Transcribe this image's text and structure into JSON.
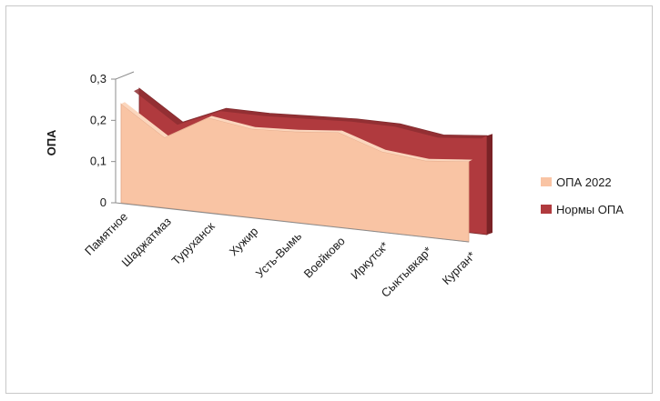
{
  "chart_data": {
    "type": "area",
    "title": "",
    "xlabel": "",
    "ylabel": "ОПА",
    "ylim": [
      0,
      0.3
    ],
    "yticks": [
      "0",
      "0,1",
      "0,2",
      "0,3"
    ],
    "categories": [
      "Памятное",
      "Шаджатмаз",
      "Туруханск",
      "Хужир",
      "Усть-Вымь",
      "Воейково",
      "Иркутск*",
      "Сыктывкар*",
      "Курган*"
    ],
    "series": [
      {
        "name": "ОПА 2022",
        "values": [
          0.24,
          0.17,
          0.23,
          0.215,
          0.22,
          0.23,
          0.195,
          0.185,
          0.195
        ],
        "color": "#F9C4A4"
      },
      {
        "name": "Нормы ОПА",
        "values": [
          0.26,
          0.19,
          0.235,
          0.235,
          0.24,
          0.245,
          0.245,
          0.23,
          0.24
        ],
        "color": "#B03A3E"
      }
    ],
    "legend_position": "right",
    "grid": false,
    "style": "3d-area"
  }
}
